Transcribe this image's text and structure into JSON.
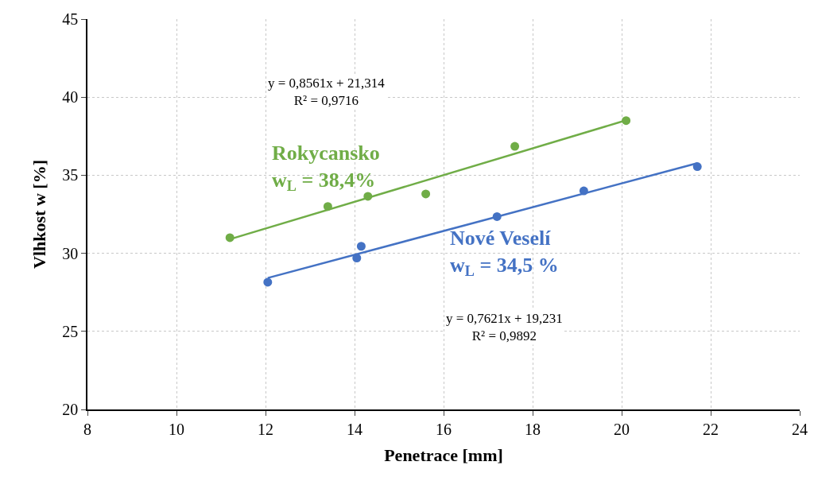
{
  "chart_data": {
    "type": "scatter",
    "xlabel": "Penetrace [mm]",
    "ylabel": "Vlhkost w [%]",
    "xlim": [
      8,
      24
    ],
    "xticks": [
      8,
      10,
      12,
      14,
      16,
      18,
      20,
      22,
      24
    ],
    "ylim": [
      20,
      45
    ],
    "yticks": [
      20,
      25,
      30,
      35,
      40,
      45
    ],
    "grid": true,
    "legend": false,
    "series": [
      {
        "name": "Rokycansko\nw$_{L}$ = 38,4%",
        "marker": "circle",
        "color": "#70ad47",
        "x": [
          11.2,
          13.4,
          14.3,
          15.6,
          17.6,
          20.1
        ],
        "values": [
          31.0,
          33.0,
          33.65,
          33.8,
          36.85,
          38.5
        ]
      },
      {
        "type": "line",
        "marker": "none",
        "color": "#70ad47",
        "x": [
          11.2,
          20.1
        ],
        "values": [
          30.9,
          38.52
        ]
      },
      {
        "name": "Nové Veselí\nw$_{L}$ = 34,5 %",
        "marker": "circle",
        "color": "#4472c4",
        "x": [
          12.05,
          14.05,
          14.15,
          17.2,
          19.15,
          21.7
        ],
        "values": [
          28.15,
          29.7,
          30.45,
          32.35,
          34.0,
          35.55
        ]
      },
      {
        "type": "line",
        "marker": "none",
        "color": "#4472c4",
        "x": [
          12.05,
          21.7
        ],
        "values": [
          28.42,
          35.77
        ]
      }
    ],
    "annotations": [
      "y = 0,8561x + 21,314\nR² = 0,9716",
      "y = 0,7621x + 19,231\nR² = 0,9892"
    ]
  }
}
